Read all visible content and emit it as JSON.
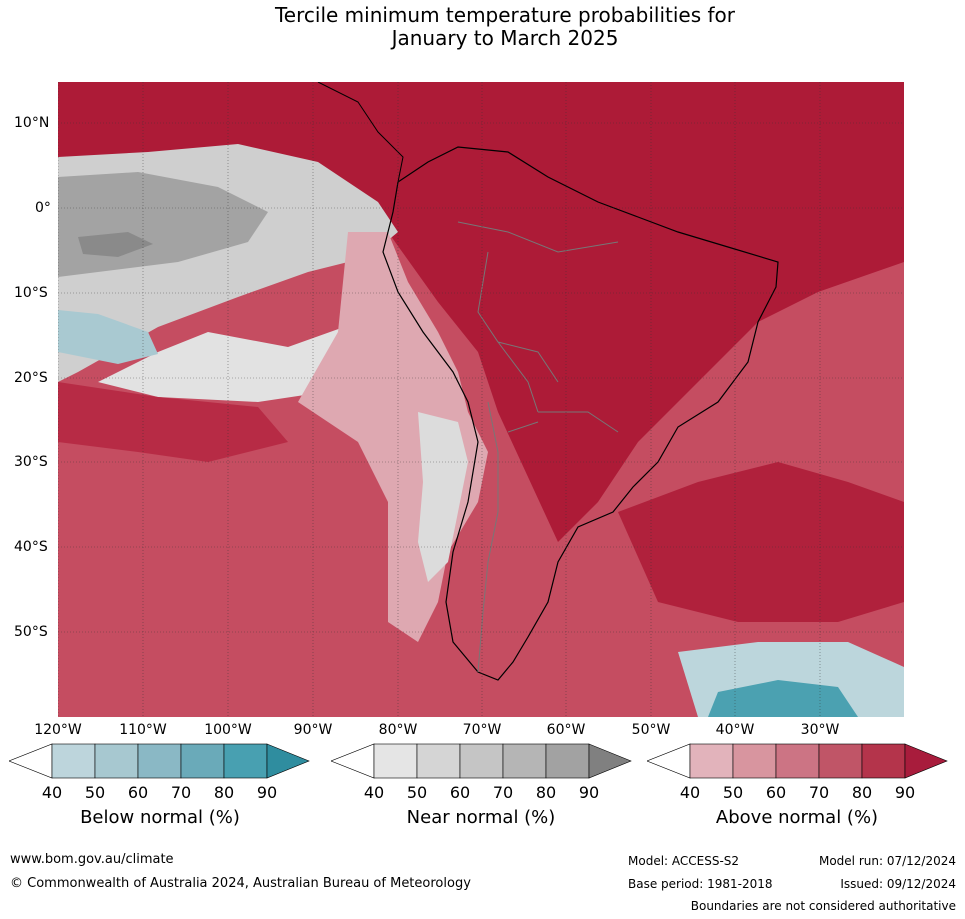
{
  "title": {
    "line1": "Tercile minimum temperature probabilities for",
    "line2": "January to March 2025"
  },
  "map": {
    "lat_labels": [
      "10°N",
      "0°",
      "10°S",
      "20°S",
      "30°S",
      "40°S",
      "50°S"
    ],
    "lon_labels": [
      "120°W",
      "110°W",
      "100°W",
      "90°W",
      "80°W",
      "70°W",
      "60°W",
      "50°W",
      "40°W",
      "30°W"
    ]
  },
  "legend": {
    "ticks": [
      "40",
      "50",
      "60",
      "70",
      "80",
      "90"
    ],
    "below_title": "Below normal (%)",
    "near_title": "Near normal (%)",
    "above_title": "Above normal (%)",
    "below_colors": [
      "#ffffff",
      "#bdd5dc",
      "#a7c8d0",
      "#8ab8c5",
      "#6aaab9",
      "#48a0b1",
      "#2f8d9f"
    ],
    "near_colors": [
      "#ffffff",
      "#e5e5e5",
      "#d5d5d5",
      "#c5c5c5",
      "#b5b5b5",
      "#a2a2a2",
      "#808080"
    ],
    "above_colors": [
      "#ffffff",
      "#e2b3bb",
      "#d8959f",
      "#cc7484",
      "#c05567",
      "#b4344b",
      "#a81c3c"
    ]
  },
  "footer": {
    "url": "www.bom.gov.au/climate",
    "copyright": "© Commonwealth of Australia 2024, Australian Bureau of Meteorology",
    "model": "Model: ACCESS-S2",
    "base_period": "Base period: 1981-2018",
    "model_run": "Model run: 07/12/2024",
    "issued": "Issued: 09/12/2024",
    "disclaimer": "Boundaries are not considered authoritative"
  }
}
